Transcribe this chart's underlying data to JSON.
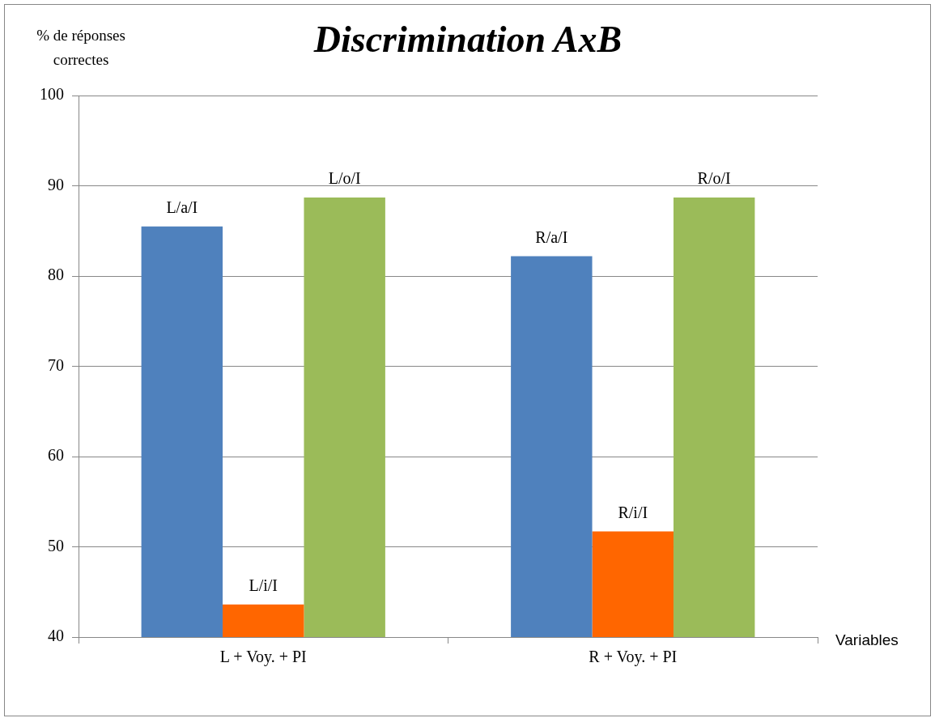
{
  "chart_data": {
    "type": "bar",
    "title": "Discrimination AxB",
    "xlabel": "Variables",
    "ylabel": "% de réponses correctes",
    "categories": [
      "L + Voy. + PI",
      "R + Voy. + PI"
    ],
    "series": [
      {
        "color": "#4f81bd",
        "values": [
          85.5,
          82.2
        ],
        "value_labels": [
          "L/a/I",
          "R/a/I"
        ]
      },
      {
        "color": "#ff6600",
        "values": [
          43.6,
          51.7
        ],
        "value_labels": [
          "L/i/I",
          "R/i/I"
        ]
      },
      {
        "color": "#9bbb59",
        "values": [
          88.7,
          88.7
        ],
        "value_labels": [
          "L/o/I",
          "R/o/I"
        ]
      }
    ],
    "ylim": [
      40,
      100
    ],
    "yticks": [
      40,
      50,
      60,
      70,
      80,
      90,
      100
    ],
    "grid": "y",
    "legend": false
  }
}
